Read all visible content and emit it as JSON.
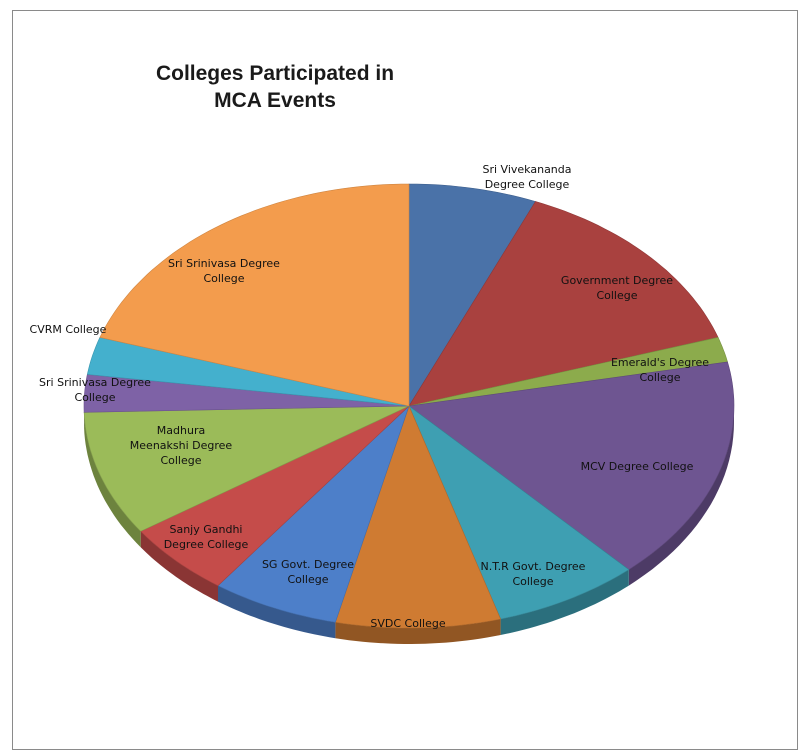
{
  "chart_data": {
    "type": "pie",
    "title": "Colleges Participated in MCA Events",
    "title_lines": [
      "Colleges Participated in",
      "MCA Events"
    ],
    "slices": [
      {
        "label": "Sri Vivekananda Degree College",
        "value": 7,
        "color": "#4a72a8"
      },
      {
        "label": "Government Degree College",
        "value": 15,
        "color": "#a9413f"
      },
      {
        "label": "Emerald's Degree College",
        "value": 2,
        "color": "#8cab4c"
      },
      {
        "label": "MCV Degree College",
        "value": 18,
        "color": "#6e5591"
      },
      {
        "label": "N.T.R Govt. Degree College",
        "value": 8,
        "color": "#3e9fb2"
      },
      {
        "label": "SVDC College",
        "value": 9,
        "color": "#cf7b32"
      },
      {
        "label": "SG Govt. Degree College",
        "value": 7,
        "color": "#4d7fc9"
      },
      {
        "label": "Sanjy Gandhi Degree College",
        "value": 6,
        "color": "#c54c4a"
      },
      {
        "label": "Madhura Meenakshi Degree College",
        "value": 10,
        "color": "#9bbb59"
      },
      {
        "label": "Sri Srinivasa Degree College",
        "value": 3,
        "color": "#7e62a6"
      },
      {
        "label": "CVRM College",
        "value": 3,
        "color": "#44b0cd"
      },
      {
        "label": "Sri Srinivasa Degree College",
        "value": 22,
        "color": "#f39c4d"
      }
    ],
    "legend": "none"
  }
}
